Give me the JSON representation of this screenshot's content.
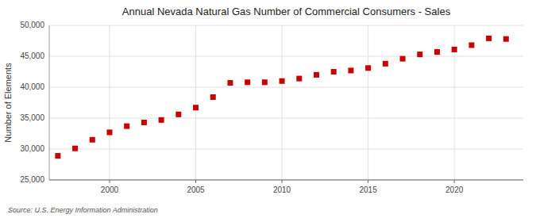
{
  "chart_data": {
    "type": "scatter",
    "title": "Annual Nevada Natural Gas Number of Commercial Consumers - Sales",
    "y_label": "Number of Elements",
    "source": "Source: U.S. Energy Information Administration",
    "x": [
      1997,
      1998,
      1999,
      2000,
      2001,
      2002,
      2003,
      2004,
      2005,
      2006,
      2007,
      2008,
      2009,
      2010,
      2011,
      2012,
      2013,
      2014,
      2015,
      2016,
      2017,
      2018,
      2019,
      2020,
      2021,
      2022,
      2023
    ],
    "values": [
      28900,
      30100,
      31500,
      32700,
      33700,
      34300,
      34700,
      35600,
      36700,
      38400,
      40700,
      40800,
      40800,
      41000,
      41400,
      42000,
      42500,
      42700,
      43100,
      43800,
      44600,
      45300,
      45700,
      46100,
      46800,
      47900,
      47800
    ],
    "color": "#cc0000",
    "marker": "square",
    "xlim": [
      1996.5,
      2024
    ],
    "ylim": [
      25000,
      50000
    ],
    "xticks": [
      2000,
      2005,
      2010,
      2015,
      2020
    ],
    "yticks": [
      {
        "value": 25000,
        "label": "25,000"
      },
      {
        "value": 30000,
        "label": "30,000"
      },
      {
        "value": 35000,
        "label": "35,000"
      },
      {
        "value": 40000,
        "label": "40,000"
      },
      {
        "value": 45000,
        "label": "45,000"
      },
      {
        "value": 50000,
        "label": "50,000"
      }
    ],
    "grid": true
  }
}
